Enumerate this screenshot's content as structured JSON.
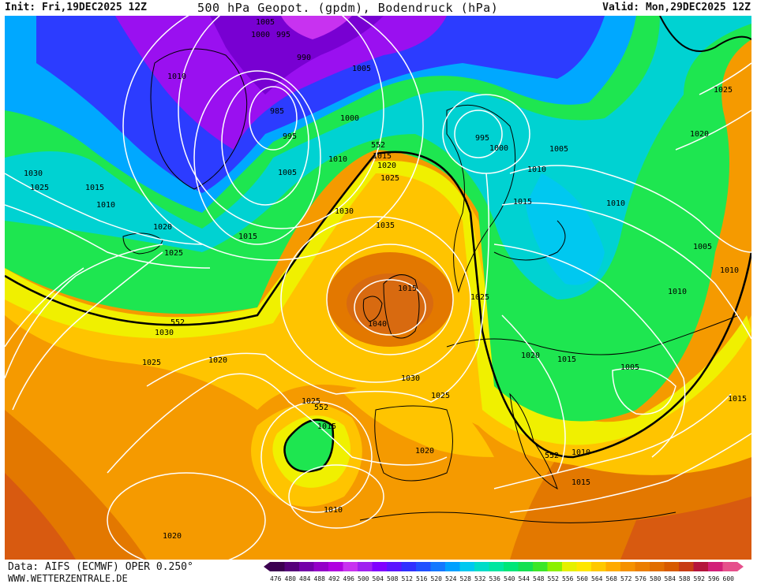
{
  "header": {
    "init": "Init: Fri,19DEC2025 12Z",
    "title": "500 hPa Geopot. (gpdm), Bodendruck (hPa)",
    "valid": "Valid: Mon,29DEC2025 12Z"
  },
  "footer": {
    "source": "Data: AIFS (ECMWF) OPER 0.250°",
    "site": "WWW.WETTERZENTRALE.DE"
  },
  "legend": {
    "levels": [
      "476",
      "480",
      "484",
      "488",
      "492",
      "496",
      "500",
      "504",
      "508",
      "512",
      "516",
      "520",
      "524",
      "528",
      "532",
      "536",
      "540",
      "544",
      "548",
      "552",
      "556",
      "560",
      "564",
      "568",
      "572",
      "576",
      "580",
      "584",
      "588",
      "592",
      "596",
      "600"
    ],
    "colors": [
      "#3c0050",
      "#55007a",
      "#7300a8",
      "#9400c8",
      "#b000e0",
      "#c832f0",
      "#a020f0",
      "#8000ff",
      "#5a14ff",
      "#3030ff",
      "#2050ff",
      "#1478ff",
      "#00a0ff",
      "#00c8f0",
      "#00dcc8",
      "#00e6a0",
      "#00e678",
      "#14e050",
      "#3ce628",
      "#8cf000",
      "#e6f000",
      "#ffe600",
      "#ffc800",
      "#ffaa00",
      "#f59100",
      "#eb7d00",
      "#e16e00",
      "#d75a00",
      "#c83c14",
      "#b4143c",
      "#d21e78",
      "#e6508c"
    ]
  },
  "map": {
    "pressure_labels": [
      "1005",
      "1000",
      "995",
      "1010",
      "990",
      "1005",
      "985",
      "1000",
      "995",
      "1005",
      "1010",
      "552",
      "1015",
      "1020",
      "1025",
      "995",
      "1000",
      "1005",
      "1010",
      "1025",
      "1020",
      "1030",
      "1025",
      "1015",
      "1010",
      "1030",
      "1015",
      "1010",
      "1020",
      "1015",
      "1025",
      "1035",
      "1015",
      "1040",
      "1025",
      "1010",
      "1005",
      "1010",
      "1030",
      "1025",
      "1020",
      "1020",
      "1015",
      "1005",
      "1015",
      "1025",
      "1030",
      "1025",
      "552",
      "1015",
      "1020",
      "552",
      "1010",
      "1015",
      "1010",
      "1020",
      "552"
    ],
    "contour_values": [
      "552",
      "556",
      "560",
      "564"
    ],
    "palette": {
      "deep_purple": "#7800d2",
      "violet": "#9a10f0",
      "blue": "#2c3cff",
      "light_blue": "#00a8ff",
      "cyan": "#00d2d2",
      "green": "#1ee650",
      "bright_green": "#2ae63c",
      "yellow": "#f0f000",
      "gold": "#ffc400",
      "orange": "#f59a00",
      "dark_orange": "#e37800",
      "red_orange": "#d85a10",
      "coast": "#000000",
      "isobar": "#ffffff"
    }
  }
}
